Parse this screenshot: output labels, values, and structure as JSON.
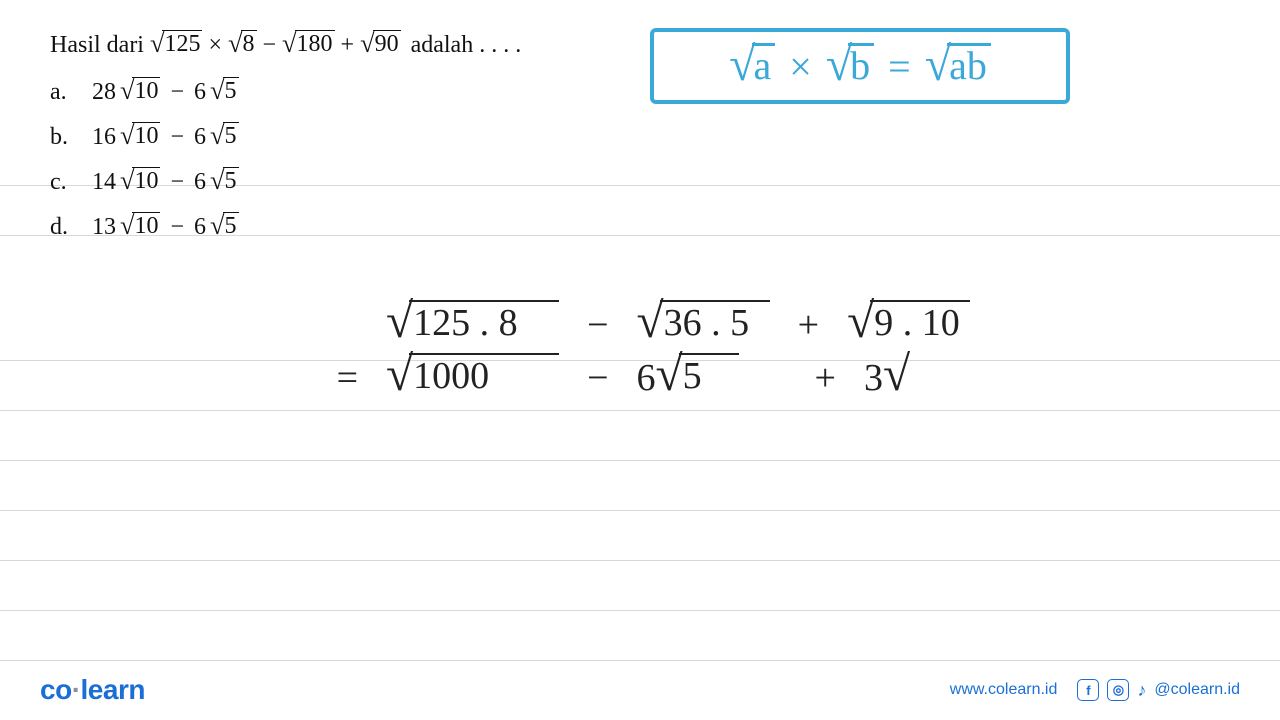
{
  "ruled_line_positions": [
    185,
    235,
    360,
    410,
    460,
    510,
    560,
    610,
    660
  ],
  "ruled_line_color": "#d8d8d8",
  "question": {
    "prefix": "Hasil dari",
    "expr_parts": {
      "r1": "125",
      "r2": "8",
      "r3": "180",
      "r4": "90"
    },
    "suffix": "adalah . . . .",
    "options": [
      {
        "letter": "a.",
        "coef1": "28",
        "rad1": "10",
        "coef2": "6",
        "rad2": "5"
      },
      {
        "letter": "b.",
        "coef1": "16",
        "rad1": "10",
        "coef2": "6",
        "rad2": "5"
      },
      {
        "letter": "c.",
        "coef1": "14",
        "rad1": "10",
        "coef2": "6",
        "rad2": "5"
      },
      {
        "letter": "d.",
        "coef1": "13",
        "rad1": "10",
        "coef2": "6",
        "rad2": "5"
      }
    ]
  },
  "formula_box": {
    "border_color": "#3aa8d8",
    "text_color": "#3aa8d8",
    "lhs_a": "a",
    "lhs_b": "b",
    "rhs": "ab",
    "mult": "×",
    "eq": "="
  },
  "work": {
    "text_color": "#222222",
    "row1": {
      "t1": "125 . 8",
      "t2": "36 . 5",
      "t3": "9 . 10",
      "op1": "−",
      "op2": "+"
    },
    "row2": {
      "lead": "=",
      "t1": "1000",
      "mid_coef": "6",
      "mid_rad": "5",
      "tail_coef": "3",
      "op1": "−",
      "op2": "+"
    }
  },
  "footer": {
    "logo_main": "co",
    "logo_sep": "·",
    "logo_rest": "learn",
    "url": "www.colearn.id",
    "handle": "@colearn.id",
    "brand_color": "#1a6fd6"
  }
}
